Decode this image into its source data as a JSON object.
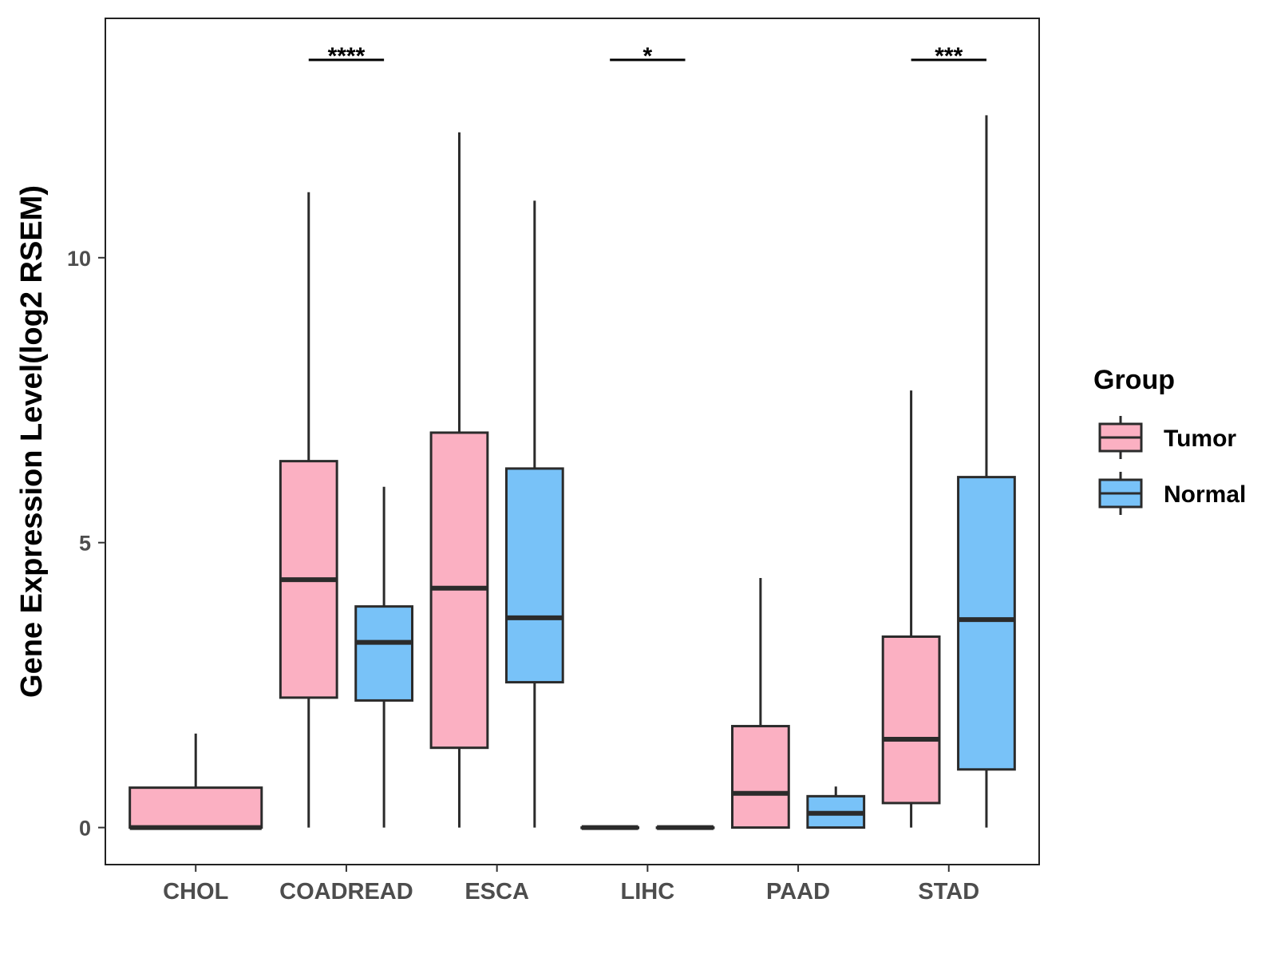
{
  "chart_data": {
    "type": "boxplot",
    "title": "",
    "xlabel": "",
    "ylabel": "Gene Expression Level(log2 RSEM)",
    "ylim": [
      -0.65,
      14.2
    ],
    "yticks": [
      0,
      5,
      10
    ],
    "categories": [
      "CHOL",
      "COADREAD",
      "ESCA",
      "LIHC",
      "PAAD",
      "STAD"
    ],
    "grid": false,
    "legend": {
      "title": "Group",
      "position": "right",
      "entries": [
        {
          "name": "Tumor",
          "color": "#FBB0C2"
        },
        {
          "name": "Normal",
          "color": "#78C2F8"
        }
      ]
    },
    "series": [
      {
        "name": "Tumor",
        "color": "#FBB0C2",
        "boxes": [
          {
            "category": "CHOL",
            "whisker_low": 0,
            "q1": 0,
            "median": 0,
            "q3": 0.7,
            "whisker_high": 1.65,
            "full_width": true
          },
          {
            "category": "COADREAD",
            "whisker_low": 0,
            "q1": 2.28,
            "median": 4.35,
            "q3": 6.43,
            "whisker_high": 11.15
          },
          {
            "category": "ESCA",
            "whisker_low": 0,
            "q1": 1.4,
            "median": 4.2,
            "q3": 6.93,
            "whisker_high": 12.2
          },
          {
            "category": "LIHC",
            "whisker_low": 0,
            "q1": 0,
            "median": 0,
            "q3": 0,
            "whisker_high": 0
          },
          {
            "category": "PAAD",
            "whisker_low": 0,
            "q1": 0,
            "median": 0.6,
            "q3": 1.78,
            "whisker_high": 4.38
          },
          {
            "category": "STAD",
            "whisker_low": 0,
            "q1": 0.43,
            "median": 1.55,
            "q3": 3.35,
            "whisker_high": 7.67
          }
        ]
      },
      {
        "name": "Normal",
        "color": "#78C2F8",
        "boxes": [
          {
            "category": "COADREAD",
            "whisker_low": 0,
            "q1": 2.23,
            "median": 3.25,
            "q3": 3.88,
            "whisker_high": 5.98
          },
          {
            "category": "ESCA",
            "whisker_low": 0,
            "q1": 2.55,
            "median": 3.68,
            "q3": 6.3,
            "whisker_high": 11.0
          },
          {
            "category": "LIHC",
            "whisker_low": 0,
            "q1": 0,
            "median": 0,
            "q3": 0,
            "whisker_high": 0
          },
          {
            "category": "PAAD",
            "whisker_low": 0,
            "q1": 0,
            "median": 0.25,
            "q3": 0.55,
            "whisker_high": 0.72
          },
          {
            "category": "STAD",
            "whisker_low": 0,
            "q1": 1.02,
            "median": 3.65,
            "q3": 6.15,
            "whisker_high": 12.5
          }
        ]
      }
    ],
    "significance": [
      {
        "category": "COADREAD",
        "label": "****"
      },
      {
        "category": "LIHC",
        "label": "*"
      },
      {
        "category": "STAD",
        "label": "***"
      }
    ]
  }
}
